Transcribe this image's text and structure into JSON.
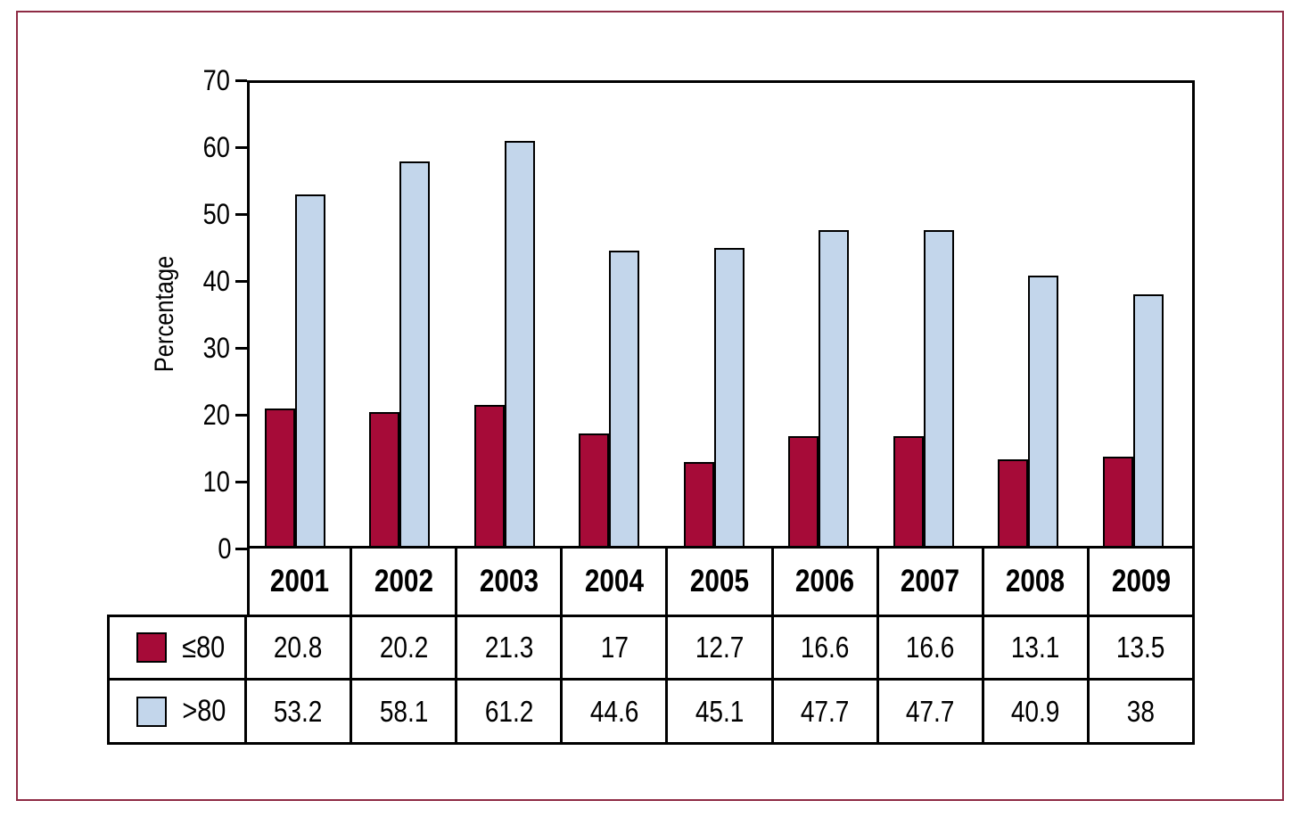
{
  "chart_data": {
    "type": "bar",
    "title": "",
    "xlabel": "",
    "ylabel": "Percentage",
    "ylim": [
      0,
      70
    ],
    "yticks": [
      70,
      60,
      50,
      40,
      30,
      20,
      10,
      0
    ],
    "grid": false,
    "legend_position": "table-left",
    "categories": [
      "2001",
      "2002",
      "2003",
      "2004",
      "2005",
      "2006",
      "2007",
      "2008",
      "2009"
    ],
    "series": [
      {
        "name": "≤80",
        "color": "#a60b38",
        "values": [
          20.8,
          20.2,
          21.3,
          17,
          12.7,
          16.6,
          16.6,
          13.1,
          13.5
        ]
      },
      {
        "name": ">80",
        "color": "#c3d6eb",
        "values": [
          53.2,
          58.1,
          61.2,
          44.6,
          45.1,
          47.7,
          47.7,
          40.9,
          38
        ]
      }
    ]
  },
  "colors": {
    "frame_border": "#8e2b44",
    "axis_line": "#000000",
    "series_le80": "#a60b38",
    "series_gt80": "#c3d6eb"
  }
}
